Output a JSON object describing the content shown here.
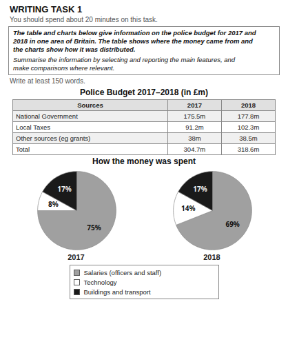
{
  "title": "WRITING TASK 1",
  "subtitle": "You should spend about 20 minutes on this task.",
  "task_lines": [
    "The table and charts below give information on the police budget for 2017 and",
    "2018 in one area of Britain. The table shows where the money came from and",
    "the charts show how it was distributed."
  ],
  "instruction_lines": [
    "Summarise the information by selecting and reporting the main features, and",
    "make comparisons where relevant."
  ],
  "caption": "Write at least 150 words.",
  "chart_data": [
    {
      "type": "table",
      "title": "Police Budget 2017–2018 (in £m)",
      "columns": [
        "Sources",
        "2017",
        "2018"
      ],
      "rows": [
        [
          "National Government",
          "175.5m",
          "177.8m"
        ],
        [
          "Local Taxes",
          "91.2m",
          "102.3m"
        ],
        [
          "Other sources (eg grants)",
          "38m",
          "38.5m"
        ],
        [
          "Total",
          "304.7m",
          "318.6m"
        ]
      ]
    },
    {
      "type": "pie",
      "title": "How the money was spent",
      "categories": [
        "Salaries (officers and staff)",
        "Technology",
        "Buildings and transport"
      ],
      "colors": [
        "#a0a0a0",
        "#ffffff",
        "#1a1a1a"
      ],
      "series": [
        {
          "name": "2017",
          "values": [
            75,
            8,
            17
          ],
          "value_labels": [
            "75%",
            "8%",
            "17%"
          ]
        },
        {
          "name": "2018",
          "values": [
            69,
            14,
            17
          ],
          "value_labels": [
            "69%",
            "14%",
            "17%"
          ]
        }
      ],
      "data_labels": true,
      "legend": "bottom"
    }
  ]
}
